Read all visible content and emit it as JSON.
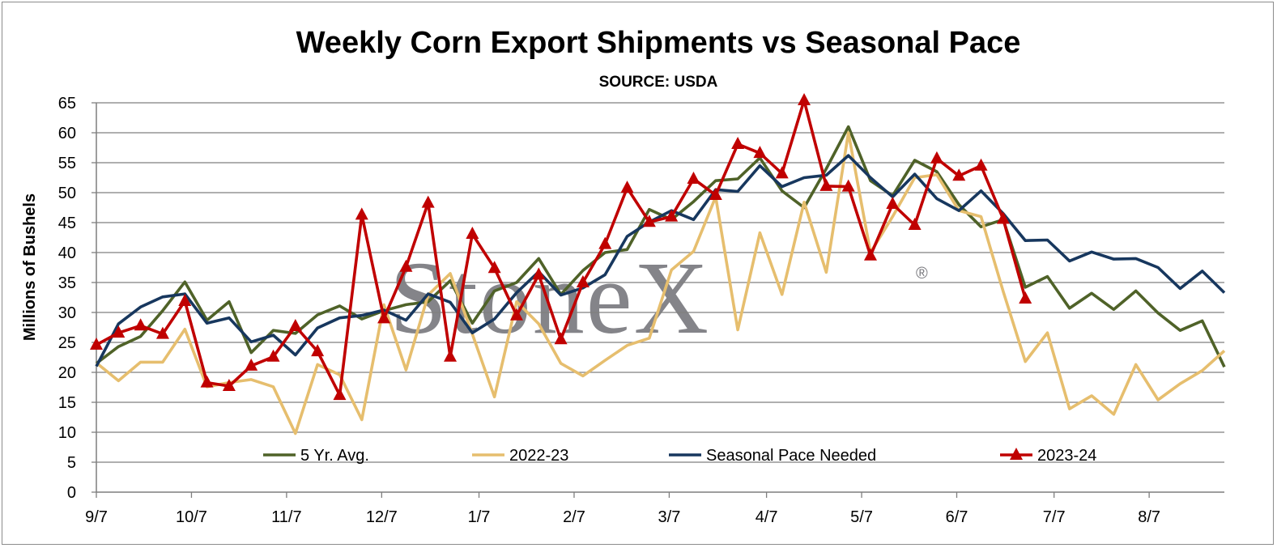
{
  "chart_data": {
    "type": "line",
    "title": "Weekly Corn Export Shipments vs Seasonal Pace",
    "subtitle": "SOURCE: USDA",
    "ylabel": "Millions of Bushels",
    "xlabel": "",
    "ylim": [
      0,
      65
    ],
    "yticks": [
      "0",
      "5",
      "10",
      "15",
      "20",
      "25",
      "30",
      "35",
      "40",
      "45",
      "50",
      "55",
      "60",
      "65"
    ],
    "xticks": [
      "9/7",
      "10/7",
      "11/7",
      "12/7",
      "1/7",
      "2/7",
      "3/7",
      "4/7",
      "5/7",
      "6/7",
      "7/7",
      "8/7"
    ],
    "grid": true,
    "legend_position": "bottom-inside",
    "watermark": "StoneX",
    "watermark_mark": "®",
    "series": [
      {
        "name": "5 Yr. Avg.",
        "color": "#4f6228",
        "marker": "none",
        "values": [
          21.5,
          24.3,
          26,
          30.3,
          35.1,
          28.7,
          31.8,
          23.3,
          27,
          26.5,
          29.6,
          31.1,
          28.9,
          30.3,
          31.3,
          31.8,
          35.3,
          28.2,
          33.6,
          35,
          39,
          33,
          37,
          40,
          40.5,
          47.2,
          45.5,
          48.5,
          52,
          52.3,
          55.8,
          50.3,
          47.5,
          54,
          61,
          52,
          49.5,
          55.4,
          53.5,
          48,
          44.3,
          45.5,
          34.2,
          36,
          30.7,
          33.2,
          30.5,
          33.6,
          29.9,
          27,
          28.6,
          20.9
        ]
      },
      {
        "name": "2022-23",
        "color": "#e6be6e",
        "marker": "none",
        "values": [
          21.6,
          18.6,
          21.7,
          21.7,
          27.2,
          17.6,
          18.3,
          18.8,
          17.6,
          9.8,
          21.3,
          19.6,
          12.1,
          31.3,
          20.4,
          32.9,
          36.5,
          26.4,
          15.9,
          31.8,
          28.1,
          21.5,
          19.4,
          22,
          24.5,
          25.7,
          37.1,
          40.2,
          49.3,
          27.1,
          43.3,
          33,
          48.4,
          36.7,
          60,
          40,
          46,
          52.5,
          53,
          47,
          46,
          33.5,
          21.8,
          26.6,
          13.9,
          16.1,
          13,
          21.3,
          15.4,
          18.1,
          20.3,
          23.6
        ]
      },
      {
        "name": "Seasonal Pace Needed",
        "color": "#17375e",
        "marker": "none",
        "values": [
          21,
          28.1,
          30.9,
          32.6,
          33.1,
          28.2,
          29.1,
          25.1,
          26.2,
          22.9,
          27.4,
          29.1,
          29.5,
          30.4,
          28.7,
          33.1,
          31.7,
          26.6,
          28.9,
          33.3,
          36.8,
          32.9,
          34.1,
          36.3,
          42.7,
          45.1,
          47,
          45.5,
          50.5,
          50.2,
          54.5,
          51,
          52.5,
          52.9,
          56.2,
          52.5,
          49.3,
          53.1,
          49,
          47,
          50.3,
          46.5,
          42,
          42.1,
          38.6,
          40.1,
          38.9,
          39,
          37.5,
          34,
          36.9,
          33.3
        ]
      },
      {
        "name": "2023-24",
        "color": "#c00000",
        "marker": "triangle",
        "values": [
          24.6,
          26.6,
          27.8,
          26.4,
          31.9,
          18.3,
          17.7,
          21.1,
          22.6,
          27.7,
          23.5,
          16.2,
          46.3,
          29,
          37.6,
          48.3,
          22.6,
          43.1,
          37.4,
          29.5,
          36.3,
          25.5,
          35,
          41.4,
          50.8,
          45.1,
          46,
          52.3,
          49.6,
          58.1,
          56.6,
          53.2,
          65.4,
          51.1,
          51,
          39.5,
          48.1,
          44.6,
          55.7,
          52.8,
          54.5,
          45.6,
          32.3
        ]
      }
    ]
  }
}
